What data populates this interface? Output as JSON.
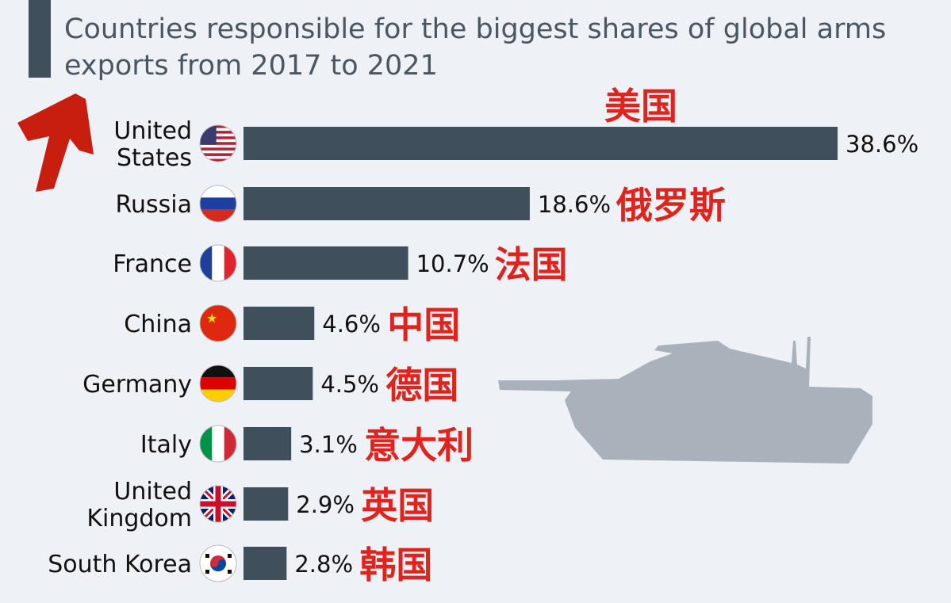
{
  "chart_data": {
    "type": "bar",
    "orientation": "horizontal",
    "title": "Countries responsible for the biggest shares of global arms exports from 2017 to 2021",
    "categories": [
      [
        "United",
        "States"
      ],
      [
        "Russia"
      ],
      [
        "France"
      ],
      [
        "China"
      ],
      [
        "Germany"
      ],
      [
        "Italy"
      ],
      [
        "United",
        "Kingdom"
      ],
      [
        "South Korea"
      ]
    ],
    "values": [
      38.6,
      18.6,
      10.7,
      4.6,
      4.5,
      3.1,
      2.9,
      2.8
    ],
    "value_labels": [
      "38.6%",
      "18.6%",
      "10.7%",
      "4.6%",
      "4.5%",
      "3.1%",
      "2.9%",
      "2.8%"
    ],
    "annotations": [
      "美国",
      "俄罗斯",
      "法国",
      "中国",
      "德国",
      "意大利",
      "英国",
      "韩国"
    ],
    "flags": [
      "us-flag-icon",
      "russia-flag-icon",
      "france-flag-icon",
      "china-flag-icon",
      "germany-flag-icon",
      "italy-flag-icon",
      "uk-flag-icon",
      "south-korea-flag-icon"
    ],
    "unit": "%",
    "grid": false,
    "legend": "none"
  },
  "colors": {
    "bar": "#3f4f5c",
    "background": "#eef2f6",
    "annotation": "#e0231c",
    "arrow": "#c81e10",
    "tank": "#a9b1bb"
  }
}
